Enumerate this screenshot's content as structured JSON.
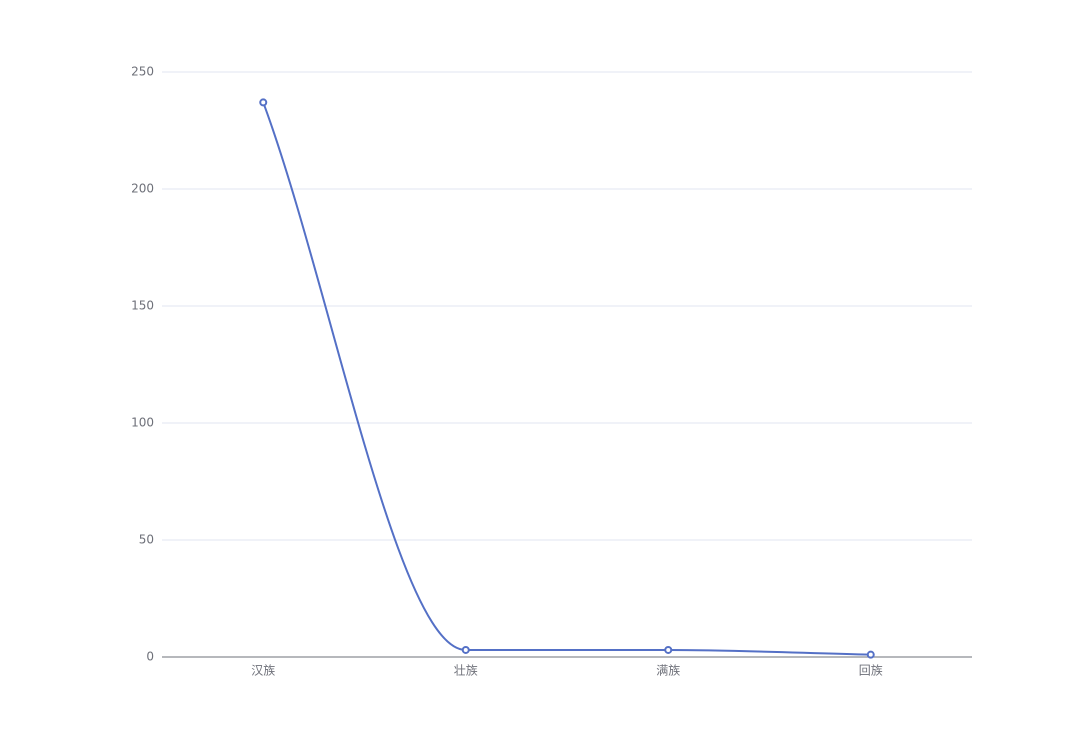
{
  "chart_data": {
    "type": "line",
    "categories": [
      "汉族",
      "壮族",
      "满族",
      "回族"
    ],
    "values": [
      237,
      3,
      3,
      1
    ],
    "color": "#5470c6",
    "ylim": [
      0,
      250
    ],
    "yticks": [
      0,
      50,
      100,
      150,
      200,
      250
    ],
    "grid": true
  }
}
